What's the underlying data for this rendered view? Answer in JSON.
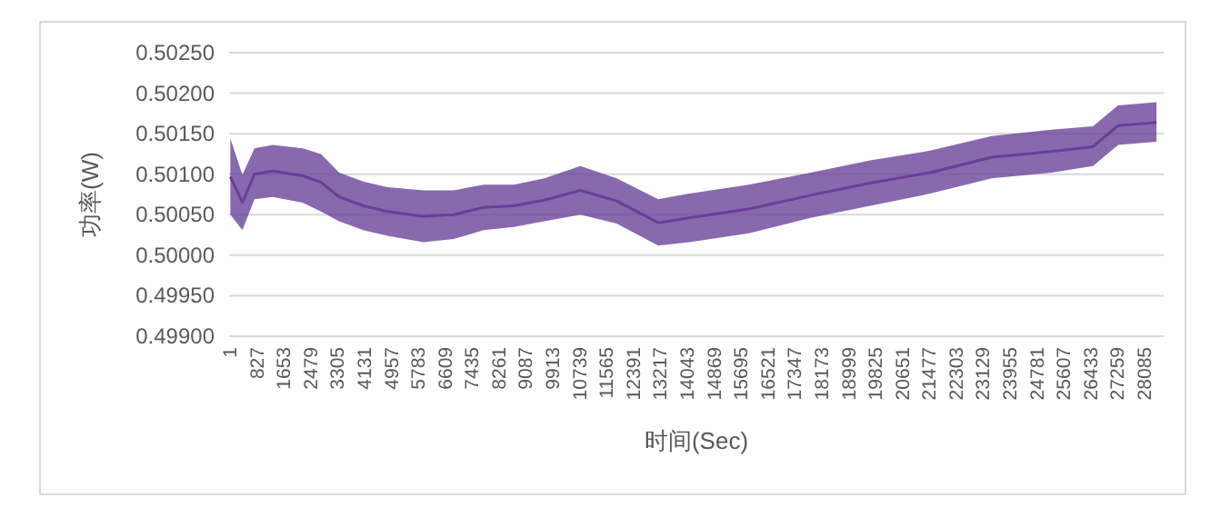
{
  "chart_data": {
    "type": "line",
    "xlabel": "时间(Sec)",
    "ylabel": "功率(W)",
    "grid": "y",
    "xlim": [
      1,
      28700
    ],
    "ylim": [
      0.499,
      0.5025
    ],
    "xticks": [
      1,
      827,
      1653,
      2479,
      3305,
      4131,
      4957,
      5783,
      6609,
      7435,
      8261,
      9087,
      9913,
      10739,
      11565,
      12391,
      13217,
      14043,
      14869,
      15695,
      16521,
      17347,
      18173,
      18999,
      19825,
      20651,
      21477,
      22303,
      23129,
      23955,
      24781,
      25607,
      26433,
      27259,
      28085
    ],
    "yticks": [
      {
        "value": 0.499,
        "label": "0.49900"
      },
      {
        "value": 0.4995,
        "label": "0.49950"
      },
      {
        "value": 0.5,
        "label": "0.50000"
      },
      {
        "value": 0.5005,
        "label": "0.50050"
      },
      {
        "value": 0.501,
        "label": "0.50100"
      },
      {
        "value": 0.5015,
        "label": "0.50150"
      },
      {
        "value": 0.502,
        "label": "0.50200"
      },
      {
        "value": 0.5025,
        "label": "0.50250"
      }
    ],
    "x": [
      40,
      410,
      780,
      1340,
      2260,
      2820,
      3380,
      4120,
      4860,
      5970,
      6900,
      7820,
      8750,
      9680,
      10790,
      11900,
      13180,
      14130,
      15960,
      17860,
      19690,
      21530,
      23420,
      25250,
      26530,
      27300,
      28480
    ],
    "series": [
      {
        "color": "#673f97",
        "values": [
          0.50097,
          0.50065,
          0.501,
          0.50104,
          0.50098,
          0.5009,
          0.50072,
          0.50061,
          0.50054,
          0.50048,
          0.5005,
          0.50059,
          0.50061,
          0.50068,
          0.5008,
          0.50067,
          0.5004,
          0.50046,
          0.50057,
          0.50074,
          0.50089,
          0.50102,
          0.50121,
          0.50128,
          0.50134,
          0.5016,
          0.50164
        ],
        "lower": [
          0.5005,
          0.50031,
          0.50069,
          0.50072,
          0.50065,
          0.50054,
          0.50042,
          0.50031,
          0.50024,
          0.50016,
          0.5002,
          0.50031,
          0.50035,
          0.50042,
          0.5005,
          0.50039,
          0.50012,
          0.50016,
          0.50027,
          0.50046,
          0.50061,
          0.50076,
          0.50095,
          0.50102,
          0.5011,
          0.50136,
          0.5014
        ],
        "upper": [
          0.50144,
          0.50099,
          0.50132,
          0.50136,
          0.50132,
          0.50125,
          0.50102,
          0.50091,
          0.50084,
          0.5008,
          0.5008,
          0.50087,
          0.50087,
          0.50095,
          0.5011,
          0.50095,
          0.50069,
          0.50076,
          0.50087,
          0.50102,
          0.50117,
          0.50129,
          0.50147,
          0.50155,
          0.50159,
          0.50185,
          0.50189
        ]
      }
    ]
  }
}
